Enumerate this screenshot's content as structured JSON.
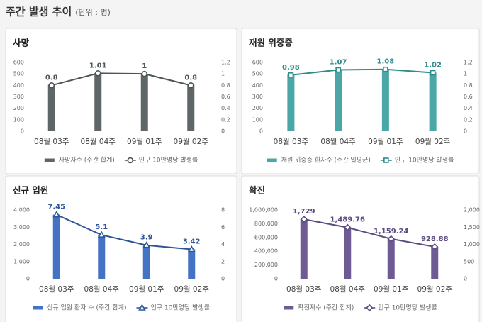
{
  "header": {
    "title": "주간 발생 추이",
    "unit": "(단위 : 명)"
  },
  "chart_data": [
    {
      "type": "combo",
      "title": "사망",
      "categories": [
        "08월 03주",
        "08월 04주",
        "09월 01주",
        "09월 02주"
      ],
      "ylim": [
        0,
        600
      ],
      "yticks": [
        0,
        100,
        200,
        300,
        400,
        500,
        600
      ],
      "y2lim": [
        0,
        1.2
      ],
      "y2ticks": [
        0,
        0.2,
        0.4,
        0.6,
        0.8,
        1,
        1.2
      ],
      "series": [
        {
          "name": "사망자수 (주간 합계)",
          "type": "bar",
          "color": "#5f6668",
          "values": [
            405,
            507,
            502,
            405
          ]
        },
        {
          "name": "인구 10만명당 발생률",
          "type": "line",
          "axis": "y2",
          "marker": "circle",
          "color": "#4d5456",
          "values": [
            0.8,
            1.01,
            1,
            0.8
          ]
        }
      ]
    },
    {
      "type": "combo",
      "title": "재원 위중증",
      "categories": [
        "08월 03주",
        "08월 04주",
        "09월 01주",
        "09월 02주"
      ],
      "ylim": [
        0,
        600
      ],
      "yticks": [
        0,
        100,
        200,
        300,
        400,
        500,
        600
      ],
      "y2lim": [
        0,
        1.2
      ],
      "y2ticks": [
        0,
        0.2,
        0.4,
        0.6,
        0.8,
        1,
        1.2
      ],
      "series": [
        {
          "name": "재원 위중증 환자수 (주간 일평균)",
          "type": "bar",
          "color": "#4aa7a6",
          "values": [
            495,
            538,
            542,
            512
          ]
        },
        {
          "name": "인구 10만명당 발생률",
          "type": "line",
          "axis": "y2",
          "marker": "square",
          "color": "#2f8c8b",
          "values": [
            0.98,
            1.07,
            1.08,
            1.02
          ]
        }
      ]
    },
    {
      "type": "combo",
      "title": "신규 입원",
      "categories": [
        "08월 03주",
        "08월 04주",
        "09월 01주",
        "09월 02주"
      ],
      "ylim": [
        0,
        4000
      ],
      "yticks": [
        0,
        {
          "value": 1000,
          "label": "1,000"
        },
        {
          "value": 2000,
          "label": "2,000"
        },
        {
          "value": 3000,
          "label": "3,000"
        },
        {
          "value": 4000,
          "label": "4,000"
        }
      ],
      "y2lim": [
        0,
        8
      ],
      "y2ticks": [
        0,
        2,
        4,
        6,
        8
      ],
      "series": [
        {
          "name": "신규 입원 환자 수 (주간 합계)",
          "type": "bar",
          "color": "#4472c4",
          "values": [
            3730,
            2550,
            1950,
            1710
          ]
        },
        {
          "name": "인구 10만명당 발생률",
          "type": "line",
          "axis": "y2",
          "marker": "triangle",
          "color": "#2f5597",
          "values": [
            7.45,
            5.1,
            3.9,
            3.42
          ]
        }
      ]
    },
    {
      "type": "combo",
      "title": "확진",
      "categories": [
        "08월 03주",
        "08월 04주",
        "09월 01주",
        "09월 02주"
      ],
      "ylim": [
        0,
        1000000
      ],
      "yticks": [
        0,
        {
          "value": 200000,
          "label": "200,000"
        },
        {
          "value": 400000,
          "label": "400,000"
        },
        {
          "value": 600000,
          "label": "600,000"
        },
        {
          "value": 800000,
          "label": "800,000"
        },
        {
          "value": 1000000,
          "label": "1,000,000"
        }
      ],
      "y2lim": [
        0,
        2000
      ],
      "y2ticks": [
        0,
        500,
        {
          "value": 1000,
          "label": "1,000"
        },
        {
          "value": 1500,
          "label": "1,500"
        },
        {
          "value": 2000,
          "label": "2,000"
        }
      ],
      "series": [
        {
          "name": "확진자수 (주간 합계)",
          "type": "bar",
          "color": "#6e5b94",
          "values": [
            864000,
            745000,
            580000,
            465000
          ]
        },
        {
          "name": "인구 10만명당 발생률",
          "type": "line",
          "axis": "y2",
          "marker": "diamond",
          "color": "#5b4a80",
          "values": [
            1729,
            1489.76,
            1159.24,
            928.88
          ],
          "value_labels": [
            "1,729",
            "1,489.76",
            "1,159.24",
            "928.88"
          ]
        }
      ]
    }
  ]
}
